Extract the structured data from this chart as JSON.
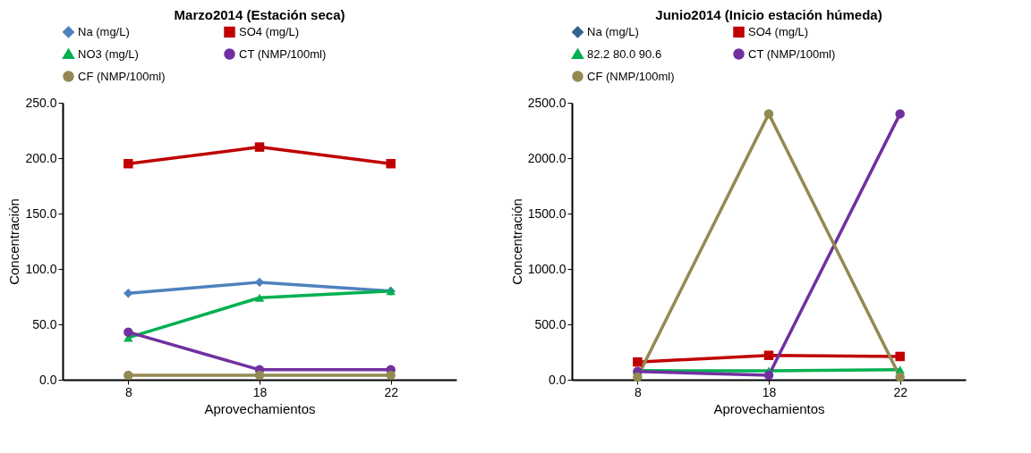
{
  "chart_data": [
    {
      "type": "line",
      "title": "Marzo2014 (Estación seca)",
      "xlabel": "Aprovechamientos",
      "ylabel": "Concentración",
      "categories": [
        "8",
        "18",
        "22"
      ],
      "ylim": [
        0,
        250
      ],
      "yticks": [
        {
          "value": 0,
          "label": "0.0"
        },
        {
          "value": 50,
          "label": "50.0"
        },
        {
          "value": 100,
          "label": "100.0"
        },
        {
          "value": 150,
          "label": "150.0"
        },
        {
          "value": 200,
          "label": "200.0"
        },
        {
          "value": 250,
          "label": "250.0"
        }
      ],
      "grid": false,
      "legend": "top",
      "series": [
        {
          "name": "Na (mg/L)",
          "color": "#4f81bd",
          "marker": "diamond",
          "values": [
            78,
            88,
            80
          ]
        },
        {
          "name": "SO4 (mg/L)",
          "color": "#c00000",
          "marker": "square",
          "values": [
            195,
            210,
            195
          ]
        },
        {
          "name": "NO3 (mg/L)",
          "color": "#00b050",
          "marker": "triangle",
          "values": [
            38,
            74,
            80
          ]
        },
        {
          "name": "CT (NMP/100ml)",
          "color": "#7030a0",
          "marker": "circle",
          "values": [
            43,
            9,
            9
          ]
        },
        {
          "name": "CF (NMP/100ml)",
          "color": "#938953",
          "marker": "circle",
          "values": [
            4,
            4,
            4
          ]
        }
      ]
    },
    {
      "type": "line",
      "title": "Junio2014 (Inicio estación húmeda)",
      "xlabel": "Aprovechamientos",
      "ylabel": "Concentración",
      "categories": [
        "8",
        "18",
        "22"
      ],
      "ylim": [
        0,
        2500
      ],
      "yticks": [
        {
          "value": 0,
          "label": "0.0"
        },
        {
          "value": 500,
          "label": "500.0"
        },
        {
          "value": 1000,
          "label": "1000.0"
        },
        {
          "value": 1500,
          "label": "1500.0"
        },
        {
          "value": 2000,
          "label": "2000.0"
        },
        {
          "value": 2500,
          "label": "2500.0"
        }
      ],
      "grid": false,
      "legend": "top",
      "series": [
        {
          "name": "Na (mg/L)",
          "color": "#376092",
          "marker": "diamond",
          "values": [
            null,
            null,
            null
          ]
        },
        {
          "name": "SO4 (mg/L)",
          "color": "#c00000",
          "marker": "square",
          "values": [
            160,
            220,
            210
          ]
        },
        {
          "name": "82.2 80.0 90.6",
          "color": "#00b050",
          "marker": "triangle",
          "values": [
            82.2,
            80.0,
            90.6
          ]
        },
        {
          "name": "CT (NMP/100ml)",
          "color": "#7030a0",
          "marker": "circle",
          "values": [
            75,
            40,
            2400
          ]
        },
        {
          "name": "CF (NMP/100ml)",
          "color": "#938953",
          "marker": "circle",
          "values": [
            25,
            2400,
            25
          ]
        }
      ]
    }
  ]
}
